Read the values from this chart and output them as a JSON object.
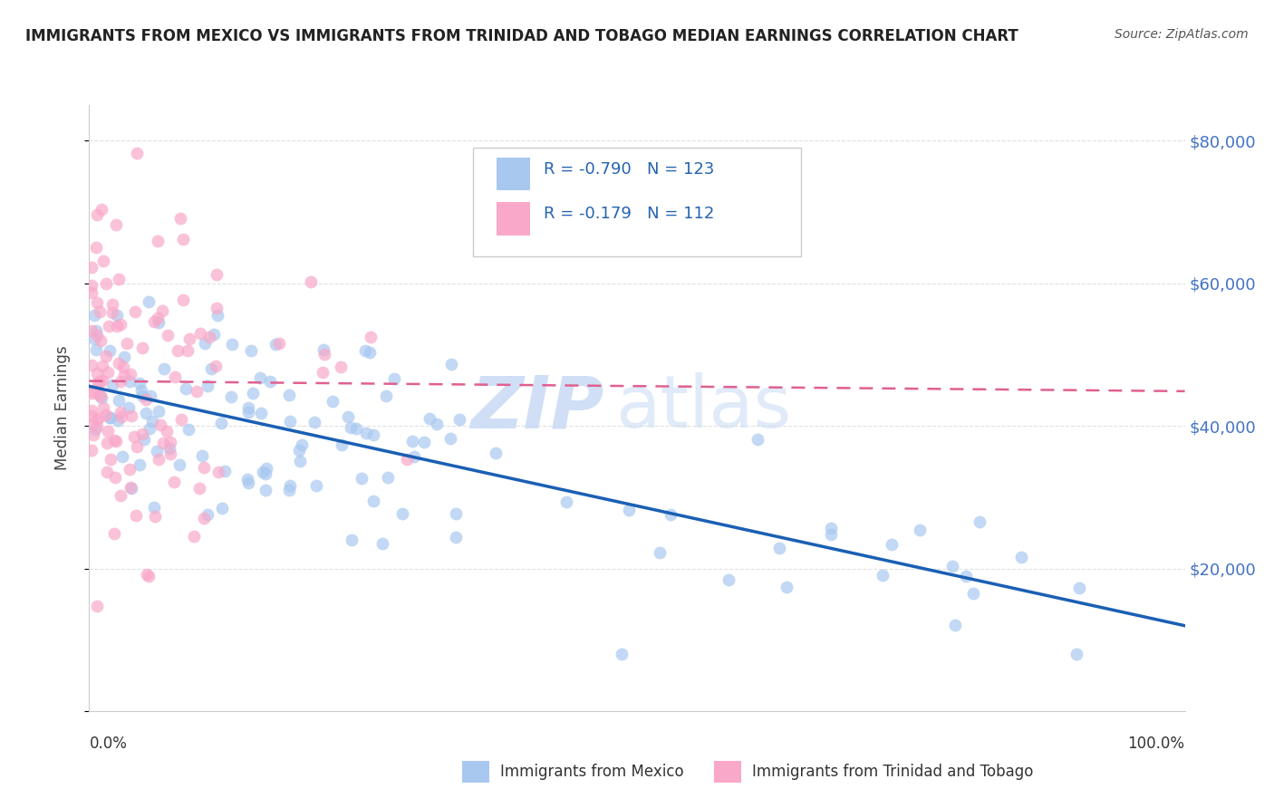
{
  "title": "IMMIGRANTS FROM MEXICO VS IMMIGRANTS FROM TRINIDAD AND TOBAGO MEDIAN EARNINGS CORRELATION CHART",
  "source": "Source: ZipAtlas.com",
  "ylabel": "Median Earnings",
  "series1_label": "Immigrants from Mexico",
  "series2_label": "Immigrants from Trinidad and Tobago",
  "series1_color": "#a8c8f0",
  "series2_color": "#f9a8c9",
  "series1_line_color": "#1a5fb4",
  "series2_line_color": "#e06090",
  "legend_r1": "-0.790",
  "legend_n1": "123",
  "legend_r2": "-0.179",
  "legend_n2": "112",
  "watermark_zip": "ZIP",
  "watermark_atlas": "atlas",
  "ytick_vals": [
    0,
    20000,
    40000,
    60000,
    80000
  ],
  "ytick_labels": [
    "",
    "$20,000",
    "$40,000",
    "$60,000",
    "$80,000"
  ],
  "xmin": 0.0,
  "xmax": 1.0,
  "ymin": 0,
  "ymax": 85000,
  "seed1": 7,
  "seed2": 13,
  "n1": 123,
  "n2": 112,
  "title_fontsize": 12,
  "source_fontsize": 10,
  "axis_label_color": "#555555",
  "right_tick_color": "#4472c4",
  "grid_color": "#e0e0e0",
  "watermark_color": "#c8daf5"
}
